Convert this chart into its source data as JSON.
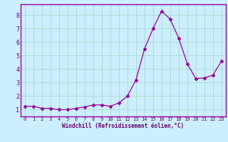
{
  "x": [
    0,
    1,
    2,
    3,
    4,
    5,
    6,
    7,
    8,
    9,
    10,
    11,
    12,
    13,
    14,
    15,
    16,
    17,
    18,
    19,
    20,
    21,
    22,
    23
  ],
  "y": [
    1.25,
    1.25,
    1.1,
    1.1,
    1.0,
    1.0,
    1.1,
    1.2,
    1.35,
    1.35,
    1.25,
    1.5,
    2.0,
    3.2,
    5.5,
    7.0,
    8.3,
    7.7,
    6.3,
    4.4,
    3.3,
    3.35,
    3.55,
    4.6
  ],
  "line_color": "#990099",
  "marker": "D",
  "marker_size": 2.5,
  "bg_color": "#cceeff",
  "grid_color": "#aaddcc",
  "xlabel": "Windchill (Refroidissement éolien,°C)",
  "xlabel_color": "#660066",
  "tick_color": "#660066",
  "xlim": [
    -0.5,
    23.5
  ],
  "ylim": [
    0.5,
    8.8
  ],
  "yticks": [
    1,
    2,
    3,
    4,
    5,
    6,
    7,
    8
  ],
  "xticks": [
    0,
    1,
    2,
    3,
    4,
    5,
    6,
    7,
    8,
    9,
    10,
    11,
    12,
    13,
    14,
    15,
    16,
    17,
    18,
    19,
    20,
    21,
    22,
    23
  ],
  "spine_color": "#9900aa"
}
